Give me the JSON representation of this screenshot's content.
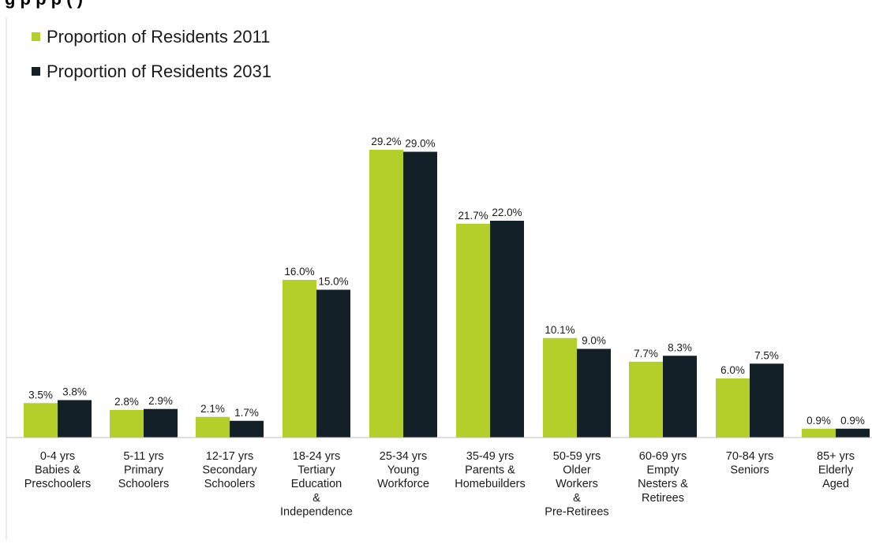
{
  "title": "g    p                         p                             p (      )",
  "chart_data": {
    "type": "bar",
    "categories": [
      [
        "0-4 yrs",
        "Babies &",
        "Preschoolers"
      ],
      [
        "5-11 yrs",
        "Primary",
        "Schoolers"
      ],
      [
        "12-17 yrs",
        "Secondary",
        "Schoolers"
      ],
      [
        "18-24 yrs",
        "Tertiary",
        "Education",
        "&",
        "Independence"
      ],
      [
        "25-34 yrs",
        "Young",
        "Workforce"
      ],
      [
        "35-49 yrs",
        "Parents &",
        "Homebuilders"
      ],
      [
        "50-59 yrs",
        "Older",
        "Workers",
        "&",
        "Pre-Retirees"
      ],
      [
        "60-69 yrs",
        "Empty",
        "Nesters &",
        "Retirees"
      ],
      [
        "70-84 yrs",
        "Seniors"
      ],
      [
        "85+ yrs",
        "Elderly",
        "Aged"
      ]
    ],
    "series": [
      {
        "name": "Proportion of Residents 2011",
        "color": "#b5cf2a",
        "values": [
          3.5,
          2.8,
          2.1,
          16.0,
          29.2,
          21.7,
          10.1,
          7.7,
          6.0,
          0.9
        ],
        "labels": [
          "3.5%",
          "2.8%",
          "2.1%",
          "16.0%",
          "29.2%",
          "21.7%",
          "10.1%",
          "7.7%",
          "6.0%",
          "0.9%"
        ]
      },
      {
        "name": "Proportion of Residents 2031",
        "color": "#142028",
        "values": [
          3.8,
          2.9,
          1.7,
          15.0,
          29.0,
          22.0,
          9.0,
          8.3,
          7.5,
          0.9
        ],
        "labels": [
          "3.8%",
          "2.9%",
          "1.7%",
          "15.0%",
          "29.0%",
          "22.0%",
          "9.0%",
          "8.3%",
          "7.5%",
          "0.9%"
        ]
      }
    ],
    "ylim": [
      0,
      30
    ],
    "legend_position": "top-left",
    "grid": false
  }
}
